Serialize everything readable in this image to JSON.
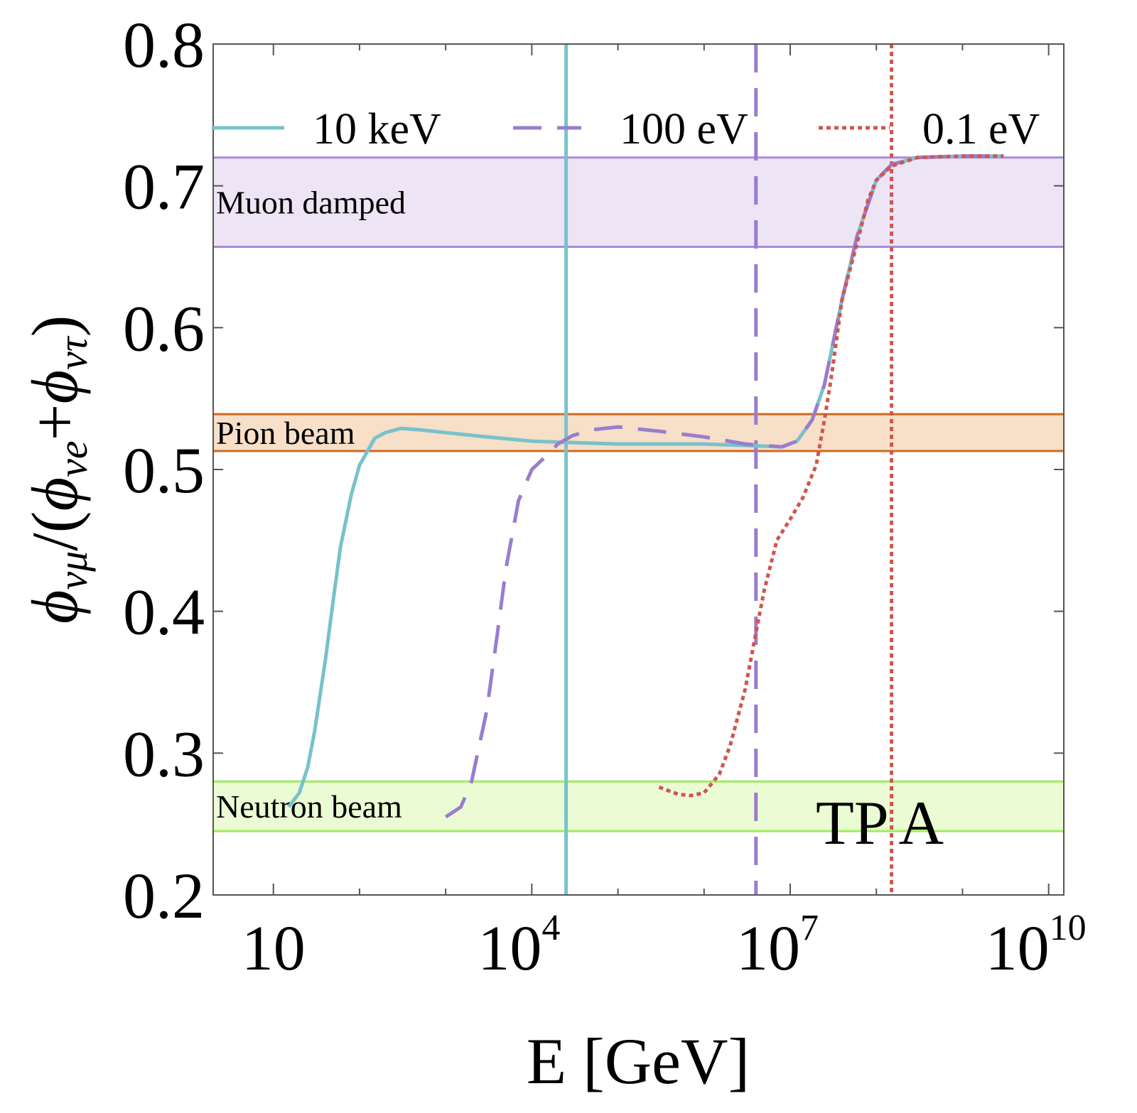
{
  "chart_data": {
    "type": "line",
    "xlabel": "E [GeV]",
    "ylabel_parts": {
      "phi": "ϕ",
      "numerator_sub": "νμ",
      "open": "/(",
      "ve_sub": "νe",
      "plus": "+",
      "vt_sub": "ντ",
      "close": ")"
    },
    "x_scale": "log",
    "xlim": [
      2,
      15000000000
    ],
    "ylim": [
      0.2,
      0.8
    ],
    "x_ticks": [
      {
        "base": "10",
        "exp": ""
      },
      {
        "base": "10",
        "exp": "4"
      },
      {
        "base": "10",
        "exp": "7"
      },
      {
        "base": "10",
        "exp": "10"
      }
    ],
    "x_tick_values": [
      10,
      10000,
      10000000,
      10000000000
    ],
    "y_ticks": [
      "0.2",
      "0.3",
      "0.4",
      "0.5",
      "0.6",
      "0.7",
      "0.8"
    ],
    "y_tick_values": [
      0.2,
      0.3,
      0.4,
      0.5,
      0.6,
      0.7,
      0.8
    ],
    "grid": false,
    "legend_position": "top",
    "annotation": "TP A",
    "bands": [
      {
        "label": "Muon damped",
        "y0": 0.657,
        "y1": 0.72,
        "fill": "#ede4f6",
        "line": "#a98bd8"
      },
      {
        "label": "Pion beam",
        "y0": 0.513,
        "y1": 0.539,
        "fill": "#f7dfc8",
        "line": "#cf6a1f"
      },
      {
        "label": "Neutron beam",
        "y0": 0.245,
        "y1": 0.28,
        "fill": "#ebfbd4",
        "line": "#9cee5a"
      }
    ],
    "series": [
      {
        "name": "10 keV",
        "color": "#78c2cc",
        "dash": "solid",
        "vline": 25000,
        "x": [
          15,
          20,
          25,
          30,
          40,
          50,
          60,
          80,
          100,
          150,
          200,
          300,
          500,
          1000,
          3000,
          10000,
          30000,
          100000,
          300000,
          1000000,
          3000000,
          8000000,
          12000000,
          18000000,
          25000000,
          40000000,
          60000000,
          100000000,
          150000000,
          300000000,
          1000000000,
          3000000000
        ],
        "y": [
          0.262,
          0.272,
          0.29,
          0.315,
          0.365,
          0.41,
          0.445,
          0.482,
          0.503,
          0.522,
          0.526,
          0.529,
          0.528,
          0.526,
          0.523,
          0.52,
          0.519,
          0.518,
          0.518,
          0.518,
          0.517,
          0.516,
          0.52,
          0.535,
          0.56,
          0.62,
          0.665,
          0.704,
          0.715,
          0.72,
          0.721,
          0.721
        ]
      },
      {
        "name": "100 eV",
        "color": "#9a7dcd",
        "dash": "dashed",
        "vline": 4000000,
        "x": [
          1000,
          1500,
          2000,
          3000,
          4000,
          5000,
          7000,
          10000,
          15000,
          20000,
          30000,
          50000,
          100000,
          300000,
          1000000,
          3000000,
          8000000,
          12000000,
          18000000,
          25000000,
          40000000,
          60000000,
          100000000,
          150000000,
          300000000,
          1000000000,
          3000000000
        ],
        "y": [
          0.255,
          0.262,
          0.28,
          0.33,
          0.385,
          0.43,
          0.478,
          0.5,
          0.51,
          0.518,
          0.524,
          0.528,
          0.53,
          0.527,
          0.523,
          0.518,
          0.516,
          0.52,
          0.535,
          0.56,
          0.62,
          0.665,
          0.704,
          0.715,
          0.72,
          0.721,
          0.721
        ]
      },
      {
        "name": "0.1 eV",
        "color": "#d0564e",
        "dash": "dotted",
        "vline": 150000000,
        "x": [
          300000,
          500000,
          700000,
          1000000,
          1500000,
          2000000,
          3000000,
          4000000,
          5000000,
          7000000,
          10000000,
          14000000,
          20000000,
          25000000,
          30000000,
          40000000,
          60000000,
          80000000,
          100000000,
          150000000,
          300000000,
          1000000000,
          3000000000
        ],
        "y": [
          0.276,
          0.271,
          0.27,
          0.272,
          0.285,
          0.305,
          0.345,
          0.385,
          0.415,
          0.45,
          0.465,
          0.48,
          0.503,
          0.535,
          0.565,
          0.62,
          0.66,
          0.69,
          0.704,
          0.714,
          0.72,
          0.721,
          0.721
        ]
      }
    ]
  }
}
